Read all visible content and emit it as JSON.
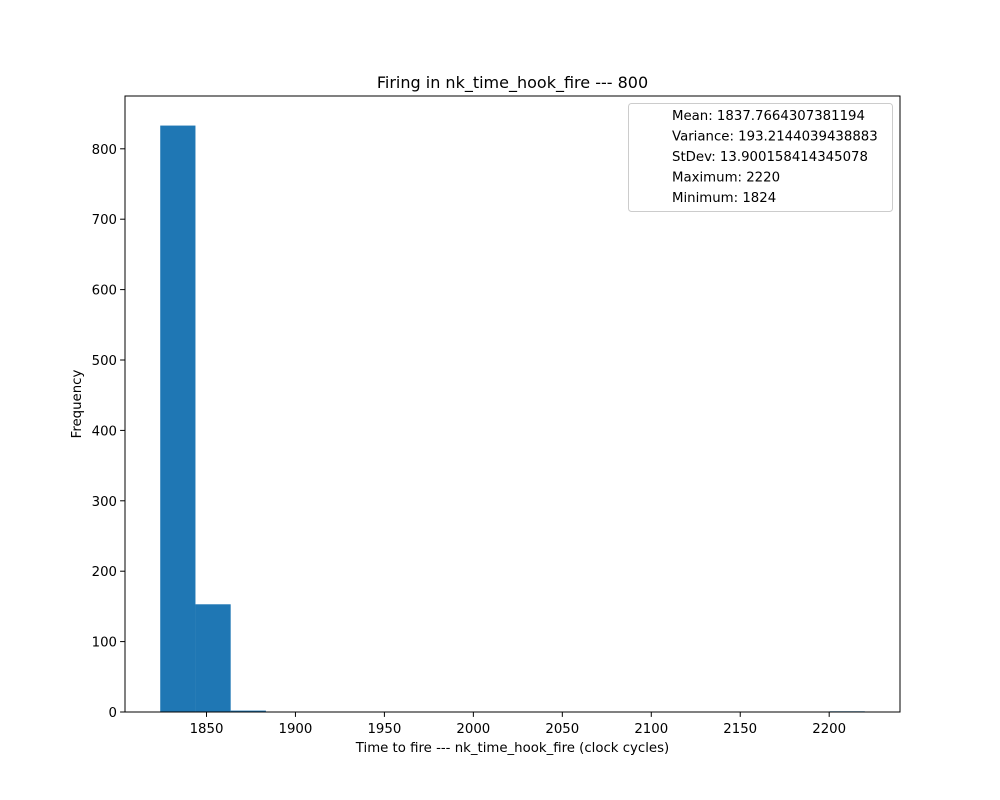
{
  "chart_data": {
    "type": "bar",
    "title": "Firing in nk_time_hook_fire --- 800",
    "xlabel": "Time to fire --- nk_time_hook_fire (clock cycles)",
    "ylabel": "Frequency",
    "xlim": [
      1804.2,
      2239.8
    ],
    "ylim": [
      0,
      875
    ],
    "xticks": [
      1850,
      1900,
      1950,
      2000,
      2050,
      2100,
      2150,
      2200
    ],
    "yticks": [
      0,
      100,
      200,
      300,
      400,
      500,
      600,
      700,
      800
    ],
    "bar_color": "#1f77b4",
    "bins": [
      {
        "start": 1824.0,
        "end": 1843.8,
        "count": 833
      },
      {
        "start": 1843.8,
        "end": 1863.6,
        "count": 153
      },
      {
        "start": 1863.6,
        "end": 1883.4,
        "count": 2
      },
      {
        "start": 1883.4,
        "end": 1903.2,
        "count": 0
      },
      {
        "start": 1903.2,
        "end": 1923.0,
        "count": 0
      },
      {
        "start": 1923.0,
        "end": 1942.8,
        "count": 0
      },
      {
        "start": 1942.8,
        "end": 1962.6,
        "count": 0
      },
      {
        "start": 1962.6,
        "end": 1982.4,
        "count": 0
      },
      {
        "start": 1982.4,
        "end": 2002.2,
        "count": 0
      },
      {
        "start": 2002.2,
        "end": 2022.0,
        "count": 0
      },
      {
        "start": 2022.0,
        "end": 2041.8,
        "count": 0
      },
      {
        "start": 2041.8,
        "end": 2061.6,
        "count": 0
      },
      {
        "start": 2061.6,
        "end": 2081.4,
        "count": 0
      },
      {
        "start": 2081.4,
        "end": 2101.2,
        "count": 0
      },
      {
        "start": 2101.2,
        "end": 2121.0,
        "count": 0
      },
      {
        "start": 2121.0,
        "end": 2140.8,
        "count": 0
      },
      {
        "start": 2140.8,
        "end": 2160.6,
        "count": 0
      },
      {
        "start": 2160.6,
        "end": 2180.4,
        "count": 0
      },
      {
        "start": 2180.4,
        "end": 2200.2,
        "count": 0
      },
      {
        "start": 2200.2,
        "end": 2220.0,
        "count": 1
      }
    ],
    "legend_position": "top-right",
    "legend": [
      "Mean: 1837.7664307381194",
      "Variance: 193.2144039438883",
      "StDev: 13.900158414345078",
      "Maximum: 2220",
      "Minimum: 1824"
    ]
  }
}
